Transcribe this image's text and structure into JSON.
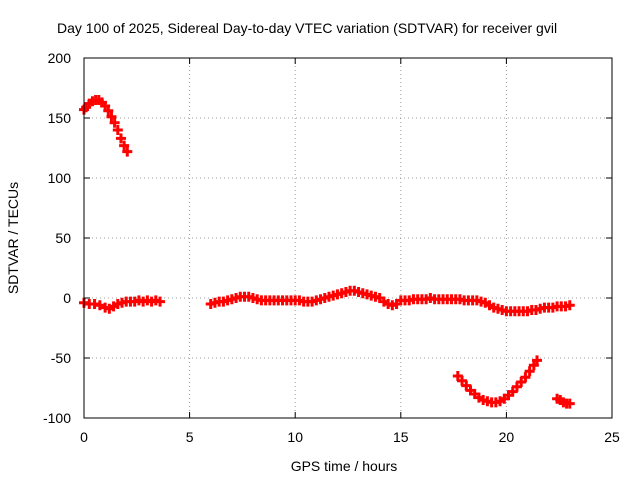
{
  "chart_data": {
    "type": "scatter",
    "title": "Day 100 of 2025, Sidereal Day-to-day VTEC variation (SDTVAR) for receiver gvil",
    "xlabel": "GPS time / hours",
    "ylabel": "SDTVAR / TECUs",
    "xlim": [
      0,
      25
    ],
    "ylim": [
      -100,
      200
    ],
    "xticks": [
      0,
      5,
      10,
      15,
      20,
      25
    ],
    "yticks": [
      -100,
      -50,
      0,
      50,
      100,
      150,
      200
    ],
    "grid": true,
    "marker": "plus",
    "color": "#ff0000",
    "series": [
      {
        "name": "SDTVAR",
        "points": [
          [
            0.0,
            157
          ],
          [
            0.1,
            159
          ],
          [
            0.25,
            162
          ],
          [
            0.4,
            164
          ],
          [
            0.55,
            165
          ],
          [
            0.7,
            165
          ],
          [
            0.85,
            163
          ],
          [
            1.0,
            160
          ],
          [
            1.15,
            156
          ],
          [
            1.3,
            151
          ],
          [
            1.45,
            146
          ],
          [
            1.6,
            140
          ],
          [
            1.75,
            133
          ],
          [
            1.9,
            127
          ],
          [
            2.05,
            122
          ],
          [
            0.0,
            -4
          ],
          [
            0.25,
            -5
          ],
          [
            0.5,
            -5
          ],
          [
            0.75,
            -6
          ],
          [
            1.0,
            -8
          ],
          [
            1.2,
            -9
          ],
          [
            1.4,
            -7
          ],
          [
            1.6,
            -5
          ],
          [
            1.8,
            -4
          ],
          [
            2.0,
            -3
          ],
          [
            2.2,
            -3
          ],
          [
            2.4,
            -3
          ],
          [
            2.6,
            -2
          ],
          [
            2.8,
            -3
          ],
          [
            3.0,
            -2
          ],
          [
            3.2,
            -3
          ],
          [
            3.4,
            -2
          ],
          [
            3.6,
            -3
          ],
          [
            6.0,
            -5
          ],
          [
            6.2,
            -4
          ],
          [
            6.4,
            -3
          ],
          [
            6.6,
            -3
          ],
          [
            6.8,
            -2
          ],
          [
            7.0,
            -1
          ],
          [
            7.2,
            0
          ],
          [
            7.4,
            1
          ],
          [
            7.6,
            1
          ],
          [
            7.8,
            1
          ],
          [
            8.0,
            0
          ],
          [
            8.2,
            -1
          ],
          [
            8.4,
            -2
          ],
          [
            8.6,
            -2
          ],
          [
            8.8,
            -2
          ],
          [
            9.0,
            -2
          ],
          [
            9.2,
            -2
          ],
          [
            9.4,
            -2
          ],
          [
            9.6,
            -2
          ],
          [
            9.8,
            -2
          ],
          [
            10.0,
            -2
          ],
          [
            10.2,
            -2
          ],
          [
            10.4,
            -3
          ],
          [
            10.6,
            -3
          ],
          [
            10.8,
            -3
          ],
          [
            11.0,
            -2
          ],
          [
            11.2,
            -1
          ],
          [
            11.4,
            0
          ],
          [
            11.6,
            1
          ],
          [
            11.8,
            2
          ],
          [
            12.0,
            3
          ],
          [
            12.2,
            4
          ],
          [
            12.4,
            5
          ],
          [
            12.6,
            6
          ],
          [
            12.8,
            6
          ],
          [
            13.0,
            5
          ],
          [
            13.2,
            4
          ],
          [
            13.4,
            3
          ],
          [
            13.6,
            2
          ],
          [
            13.8,
            1
          ],
          [
            14.0,
            0
          ],
          [
            14.2,
            -3
          ],
          [
            14.4,
            -5
          ],
          [
            14.6,
            -6
          ],
          [
            14.8,
            -5
          ],
          [
            15.0,
            -2
          ],
          [
            15.2,
            -2
          ],
          [
            15.4,
            -2
          ],
          [
            15.6,
            -1
          ],
          [
            15.8,
            -1
          ],
          [
            16.0,
            -1
          ],
          [
            16.2,
            -1
          ],
          [
            16.4,
            0
          ],
          [
            16.6,
            -1
          ],
          [
            16.8,
            -1
          ],
          [
            17.0,
            -1
          ],
          [
            17.2,
            -1
          ],
          [
            17.4,
            -1
          ],
          [
            17.6,
            -1
          ],
          [
            17.8,
            -1
          ],
          [
            18.0,
            -2
          ],
          [
            18.2,
            -2
          ],
          [
            18.4,
            -2
          ],
          [
            18.6,
            -2
          ],
          [
            18.8,
            -3
          ],
          [
            19.0,
            -4
          ],
          [
            19.2,
            -6
          ],
          [
            19.4,
            -8
          ],
          [
            19.6,
            -9
          ],
          [
            19.8,
            -10
          ],
          [
            20.0,
            -11
          ],
          [
            20.2,
            -11
          ],
          [
            20.4,
            -11
          ],
          [
            20.6,
            -11
          ],
          [
            20.8,
            -11
          ],
          [
            21.0,
            -11
          ],
          [
            21.2,
            -10
          ],
          [
            21.4,
            -10
          ],
          [
            21.6,
            -9
          ],
          [
            21.8,
            -8
          ],
          [
            22.0,
            -8
          ],
          [
            22.2,
            -8
          ],
          [
            22.4,
            -7
          ],
          [
            22.6,
            -7
          ],
          [
            22.8,
            -7
          ],
          [
            23.0,
            -6
          ],
          [
            17.7,
            -65
          ],
          [
            17.9,
            -69
          ],
          [
            18.1,
            -73
          ],
          [
            18.3,
            -77
          ],
          [
            18.5,
            -80
          ],
          [
            18.7,
            -83
          ],
          [
            18.9,
            -85
          ],
          [
            19.1,
            -86
          ],
          [
            19.3,
            -87
          ],
          [
            19.5,
            -87
          ],
          [
            19.7,
            -86
          ],
          [
            19.9,
            -84
          ],
          [
            20.1,
            -81
          ],
          [
            20.3,
            -78
          ],
          [
            20.5,
            -74
          ],
          [
            20.7,
            -70
          ],
          [
            20.9,
            -66
          ],
          [
            21.1,
            -61
          ],
          [
            21.3,
            -56
          ],
          [
            21.45,
            -52
          ],
          [
            22.4,
            -84
          ],
          [
            22.55,
            -85
          ],
          [
            22.7,
            -87
          ],
          [
            22.85,
            -88
          ],
          [
            23.0,
            -88
          ]
        ]
      }
    ]
  }
}
